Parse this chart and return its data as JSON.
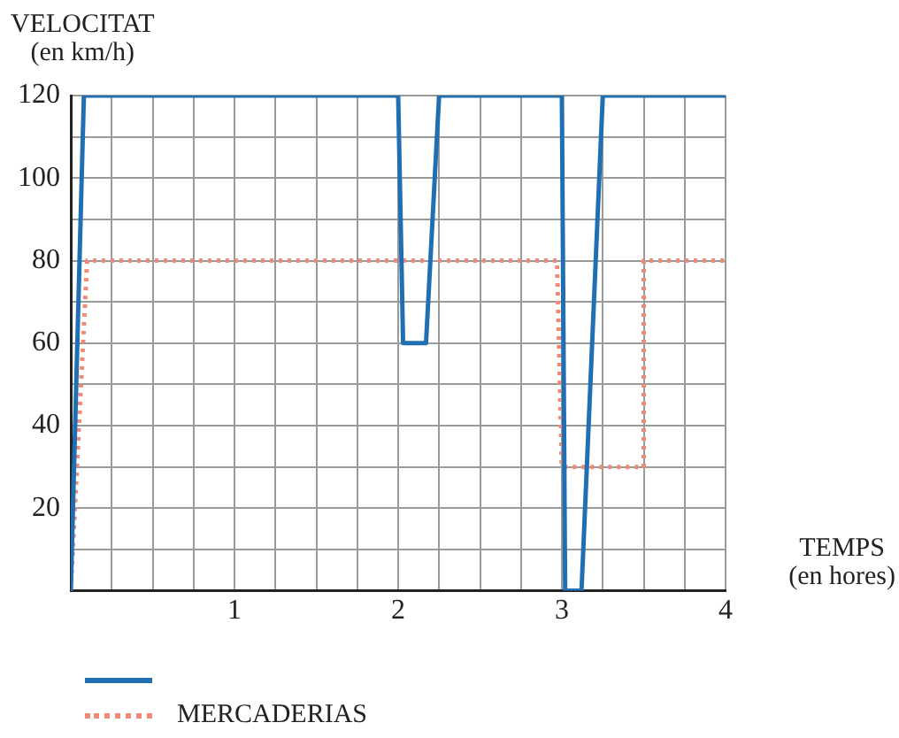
{
  "chart_data": {
    "type": "line",
    "ylabel": "VELOCITAT\n(en km/h)",
    "xlabel": "TEMPS\n(en hores)",
    "xlim": [
      0,
      4
    ],
    "ylim": [
      0,
      120
    ],
    "xticks": [
      {
        "value": 0,
        "label": null
      },
      {
        "value": 0.25,
        "label": null
      },
      {
        "value": 0.5,
        "label": null
      },
      {
        "value": 0.75,
        "label": null
      },
      1,
      {
        "value": 1.25,
        "label": null
      },
      {
        "value": 1.5,
        "label": null
      },
      {
        "value": 1.75,
        "label": null
      },
      2,
      {
        "value": 2.25,
        "label": null
      },
      {
        "value": 2.5,
        "label": null
      },
      {
        "value": 2.75,
        "label": null
      },
      3,
      {
        "value": 3.25,
        "label": null
      },
      {
        "value": 3.5,
        "label": null
      },
      {
        "value": 3.75,
        "label": null
      },
      4
    ],
    "yticks": [
      {
        "value": 0,
        "label": null
      },
      {
        "value": 10,
        "label": null
      },
      20,
      {
        "value": 30,
        "label": null
      },
      40,
      {
        "value": 50,
        "label": null
      },
      60,
      {
        "value": 70,
        "label": null
      },
      80,
      {
        "value": 90,
        "label": null
      },
      100,
      {
        "value": 110,
        "label": null
      },
      120
    ],
    "grid": true,
    "legend": "bottom",
    "marker": "none",
    "series": [
      {
        "color": "#1f6fb2",
        "line_style": "solid",
        "x": [
          0,
          0.08,
          2,
          2.03,
          2.17,
          2.25,
          3,
          3.02,
          3.12,
          3.25,
          4
        ],
        "values": [
          0,
          120,
          120,
          60,
          60,
          120,
          120,
          0,
          0,
          120,
          120
        ]
      },
      {
        "name": "MERCADERIAS",
        "color": "#f08a78",
        "line_style": "dotted",
        "x": [
          0,
          0.1,
          2.97,
          3,
          3.5,
          3.5,
          4
        ],
        "values": [
          0,
          80,
          80,
          30,
          30,
          80,
          80
        ]
      }
    ]
  }
}
